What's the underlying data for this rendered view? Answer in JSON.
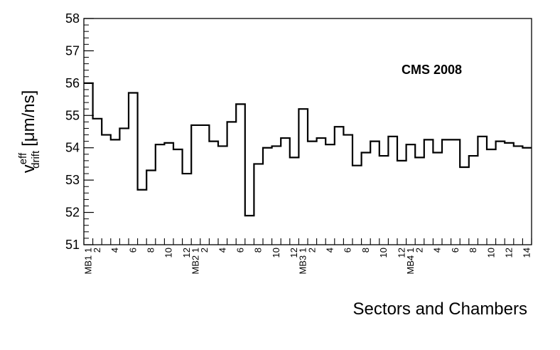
{
  "chart_data": {
    "type": "line",
    "step": true,
    "title": "",
    "annotation": "CMS 2008",
    "xlabel": "Sectors and Chambers",
    "ylabel": {
      "base": "v",
      "sup": "eff",
      "sub": "drift",
      "unit": "[μm/ns]"
    },
    "ylim": [
      51,
      58
    ],
    "yticks": [
      "51",
      "52",
      "53",
      "54",
      "55",
      "56",
      "57",
      "58"
    ],
    "xticks": [
      {
        "index": 0,
        "label": "MB1 1"
      },
      {
        "index": 1,
        "label": "2"
      },
      {
        "index": 3,
        "label": "4"
      },
      {
        "index": 5,
        "label": "6"
      },
      {
        "index": 7,
        "label": "8"
      },
      {
        "index": 9,
        "label": "10"
      },
      {
        "index": 11,
        "label": "12"
      },
      {
        "index": 12,
        "label": "MB2 1"
      },
      {
        "index": 13,
        "label": "2"
      },
      {
        "index": 15,
        "label": "4"
      },
      {
        "index": 17,
        "label": "6"
      },
      {
        "index": 19,
        "label": "8"
      },
      {
        "index": 21,
        "label": "10"
      },
      {
        "index": 23,
        "label": "12"
      },
      {
        "index": 24,
        "label": "MB3 1"
      },
      {
        "index": 25,
        "label": "2"
      },
      {
        "index": 27,
        "label": "4"
      },
      {
        "index": 29,
        "label": "6"
      },
      {
        "index": 31,
        "label": "8"
      },
      {
        "index": 33,
        "label": "10"
      },
      {
        "index": 35,
        "label": "12"
      },
      {
        "index": 36,
        "label": "MB4 1"
      },
      {
        "index": 37,
        "label": "2"
      },
      {
        "index": 39,
        "label": "4"
      },
      {
        "index": 41,
        "label": "6"
      },
      {
        "index": 43,
        "label": "8"
      },
      {
        "index": 45,
        "label": "10"
      },
      {
        "index": 47,
        "label": "12"
      },
      {
        "index": 49,
        "label": "14"
      }
    ],
    "series": [
      {
        "values": [
          56.0,
          54.9,
          54.4,
          54.25,
          54.6,
          55.7,
          52.7,
          53.3,
          54.1,
          54.15,
          53.95,
          53.2,
          54.7,
          54.7,
          54.2,
          54.05,
          54.8,
          55.35,
          51.9,
          53.5,
          54.0,
          54.05,
          54.3,
          53.7,
          55.2,
          54.2,
          54.3,
          54.1,
          54.65,
          54.4,
          53.45,
          53.85,
          54.2,
          53.75,
          54.35,
          53.6,
          54.1,
          53.7,
          54.25,
          53.85,
          54.25,
          54.25,
          53.4,
          53.75,
          54.35,
          53.95,
          54.2,
          54.15,
          54.05,
          54.0
        ]
      }
    ],
    "grid": false,
    "legend": false
  }
}
